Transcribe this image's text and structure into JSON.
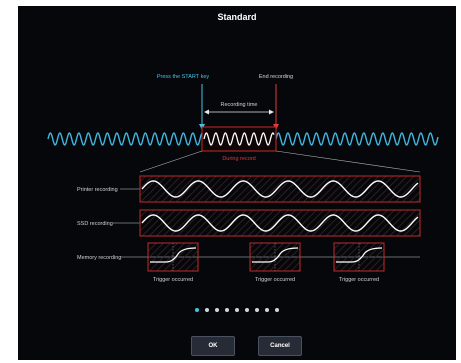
{
  "dialog": {
    "title": "Standard",
    "ok_label": "OK",
    "cancel_label": "Cancel",
    "page_count": 9,
    "current_page": 1
  },
  "diagram": {
    "start_label": "Press the START key",
    "end_label": "End recording",
    "recording_time_label": "Recording time",
    "during_record_label": "During record",
    "rows": [
      {
        "label": "Printer recording"
      },
      {
        "label": "SSD recording"
      },
      {
        "label": "Memory recording"
      }
    ],
    "trigger_label": "Trigger occurred"
  },
  "colors": {
    "background": "#05070a",
    "start_marker": "#46c1e6",
    "end_marker": "#e03a3a",
    "record_box": "#c42a2a",
    "wave_main": "#3fb7e0",
    "wave_record": "#ffffff"
  }
}
